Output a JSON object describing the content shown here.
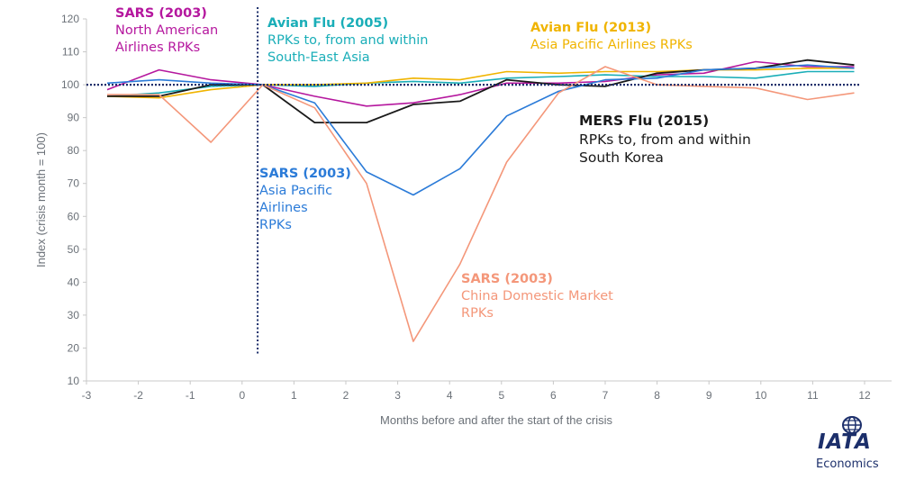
{
  "chart_data": {
    "type": "line",
    "xlabel": "Months before and after the start of the crisis",
    "ylabel": "Index (crisis month = 100)",
    "xlim": [
      -3,
      12
    ],
    "ylim": [
      10,
      120
    ],
    "x_ticks": [
      -3,
      -2,
      -1,
      0,
      1,
      2,
      3,
      4,
      5,
      6,
      7,
      8,
      9,
      10,
      11,
      12
    ],
    "y_ticks": [
      10,
      20,
      30,
      40,
      50,
      60,
      70,
      80,
      90,
      100,
      110,
      120
    ],
    "crisis_marker_x": 0.3,
    "baseline_y": 100,
    "series": [
      {
        "name": "SARS (2003) North American Airlines RPKs",
        "color": "#b5179e",
        "x": [
          -2.6,
          -1.6,
          -0.6,
          0.4,
          1.4,
          2.4,
          3.3,
          4.2,
          5.1,
          6.1,
          7.0,
          8.0,
          8.9,
          9.9,
          10.9,
          11.8
        ],
        "y": [
          98.5,
          104.5,
          101.5,
          100,
          96.5,
          93.5,
          94.5,
          97,
          100.5,
          100.5,
          101,
          103,
          103.5,
          107,
          105.5,
          105.5
        ]
      },
      {
        "name": "Avian Flu (2005) RPKs to, from and within South-East Asia",
        "color": "#1aaeb8",
        "x": [
          -2.6,
          -1.6,
          -0.6,
          0.4,
          1.4,
          2.4,
          3.3,
          4.2,
          5.1,
          6.1,
          7.0,
          8.0,
          8.9,
          9.9,
          10.9,
          11.8
        ],
        "y": [
          96.5,
          97.5,
          99.5,
          100,
          99.5,
          100.5,
          101,
          100.5,
          102,
          102.5,
          103,
          102.5,
          102.5,
          102,
          104,
          104
        ]
      },
      {
        "name": "Avian Flu (2013) Asia Pacific Airlines RPKs",
        "color": "#f0b400",
        "x": [
          -2.6,
          -1.6,
          -0.6,
          0.4,
          1.4,
          2.4,
          3.3,
          4.2,
          5.1,
          6.1,
          7.0,
          8.0,
          8.9,
          9.9,
          10.9,
          11.8
        ],
        "y": [
          96.5,
          96,
          98.5,
          100,
          100,
          100.5,
          102,
          101.5,
          104,
          103.5,
          104,
          104,
          104.5,
          104.5,
          105,
          105
        ]
      },
      {
        "name": "MERS Flu (2015) RPKs to, from and within South Korea",
        "color": "#1a1a1a",
        "x": [
          -2.6,
          -1.6,
          -0.6,
          0.4,
          1.4,
          2.4,
          3.3,
          4.2,
          5.1,
          6.1,
          7.0,
          8.0,
          8.9,
          9.9,
          10.9,
          11.8
        ],
        "y": [
          96.5,
          96.5,
          100,
          100,
          88.5,
          88.5,
          94,
          95,
          101.5,
          100,
          99.5,
          103.5,
          104.5,
          105,
          107.5,
          106
        ]
      },
      {
        "name": "SARS (2003) Asia Pacific Airlines RPKs",
        "color": "#2b7bd8",
        "x": [
          -2.6,
          -1.6,
          -0.6,
          0.4,
          1.4,
          2.4,
          3.3,
          4.2,
          5.1,
          6.1,
          7.0,
          8.0,
          8.9,
          9.9,
          10.9,
          11.8
        ],
        "y": [
          100.5,
          101.5,
          100.5,
          100,
          94.5,
          73.5,
          66.5,
          74.5,
          90.5,
          98,
          101.5,
          102,
          104.5,
          105,
          106,
          105
        ]
      },
      {
        "name": "SARS (2003) China Domestic Market RPKs",
        "color": "#f4977a",
        "x": [
          -2.6,
          -1.6,
          -0.6,
          0.4,
          1.4,
          2.4,
          3.3,
          4.2,
          5.1,
          6.1,
          7.0,
          8.0,
          8.9,
          9.9,
          10.9,
          11.8
        ],
        "y": [
          97,
          97,
          82.5,
          100,
          93,
          70,
          22,
          45.5,
          76.5,
          97.5,
          105.5,
          100,
          99.5,
          99,
          95.5,
          97.5
        ]
      }
    ]
  },
  "annotations": [
    {
      "id": "sars-na",
      "title": "SARS (2003)",
      "subtitle": "North American\nAirlines RPKs",
      "color": "#b5179e"
    },
    {
      "id": "avian-2005",
      "title": "Avian  Flu (2005)",
      "subtitle": "RPKs to, from and within\nSouth-East Asia",
      "color": "#1aaeb8"
    },
    {
      "id": "avian-2013",
      "title": "Avian Flu (2013)",
      "subtitle": "Asia Pacific Airlines RPKs",
      "color": "#f0b400"
    },
    {
      "id": "mers",
      "title": "MERS Flu (2015)",
      "subtitle": "RPKs to, from and within\nSouth Korea",
      "color": "#1a1a1a"
    },
    {
      "id": "sars-ap",
      "title": "SARS (2003)",
      "subtitle": "Asia Pacific\nAirlines\nRPKs",
      "color": "#2b7bd8"
    },
    {
      "id": "sars-china",
      "title": "SARS (2003)",
      "subtitle": "China  Domestic Market\nRPKs",
      "color": "#f4977a"
    }
  ],
  "logo": {
    "name": "IATA",
    "caption": "Economics",
    "color": "#1c2f6b"
  }
}
